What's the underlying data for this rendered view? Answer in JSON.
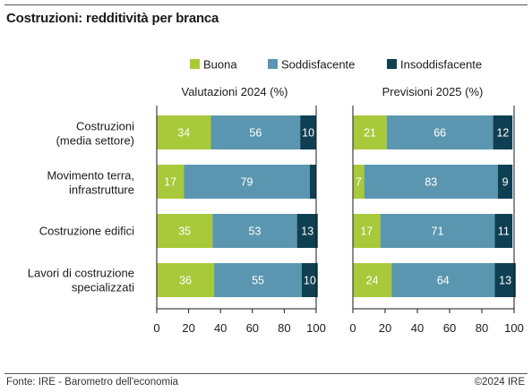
{
  "title": "Costruzioni: redditività per branca",
  "footer": {
    "source": "Fonte: IRE - Barometro dell'economia",
    "copyright": "©2024 IRE"
  },
  "colors": {
    "buona": "#a8c93a",
    "soddisfacente": "#5b96b0",
    "insoddisfacente": "#0f3f52"
  },
  "chart_data": {
    "type": "bar",
    "stacked": true,
    "orientation": "horizontal",
    "categories": [
      "Costruzioni\n(media settore)",
      "Movimento terra,\ninfrastrutture",
      "Costruzione edifici",
      "Lavori di costruzione\nspecializzati"
    ],
    "legend": [
      "Buona",
      "Soddisfacente",
      "Insoddisfacente"
    ],
    "legend_placement": "top",
    "xlim": [
      0,
      100
    ],
    "xticks": [
      0,
      20,
      40,
      60,
      80,
      100
    ],
    "panels": [
      {
        "title": "Valutazioni 2024 (%)",
        "series": [
          {
            "name": "Buona",
            "values": [
              34,
              17,
              35,
              36
            ]
          },
          {
            "name": "Soddisfacente",
            "values": [
              56,
              79,
              53,
              55
            ]
          },
          {
            "name": "Insoddisfacente",
            "values": [
              10,
              4,
              13,
              10
            ]
          }
        ],
        "labels": [
          [
            "34",
            "56",
            "10"
          ],
          [
            "17",
            "79",
            ""
          ],
          [
            "35",
            "53",
            "13"
          ],
          [
            "36",
            "55",
            "10"
          ]
        ]
      },
      {
        "title": "Previsioni 2025 (%)",
        "series": [
          {
            "name": "Buona",
            "values": [
              21,
              7,
              17,
              24
            ]
          },
          {
            "name": "Soddisfacente",
            "values": [
              66,
              83,
              71,
              64
            ]
          },
          {
            "name": "Insoddisfacente",
            "values": [
              12,
              9,
              11,
              13
            ]
          }
        ],
        "labels": [
          [
            "21",
            "66",
            "12"
          ],
          [
            "7",
            "83",
            "9"
          ],
          [
            "17",
            "71",
            "11"
          ],
          [
            "24",
            "64",
            "13"
          ]
        ]
      }
    ]
  }
}
